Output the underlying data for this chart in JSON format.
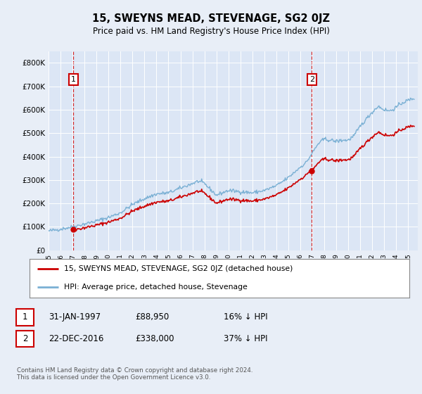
{
  "title": "15, SWEYNS MEAD, STEVENAGE, SG2 0JZ",
  "subtitle": "Price paid vs. HM Land Registry's House Price Index (HPI)",
  "background_color": "#e8eef7",
  "plot_bg_color": "#dce6f5",
  "grid_color": "#ffffff",
  "hpi_line_color": "#7ab0d4",
  "price_line_color": "#cc0000",
  "sale1_year_float": 1997.08,
  "sale1_price": 88950,
  "sale2_year_float": 2016.97,
  "sale2_price": 338000,
  "legend_text1": "15, SWEYNS MEAD, STEVENAGE, SG2 0JZ (detached house)",
  "legend_text2": "HPI: Average price, detached house, Stevenage",
  "footer1": "Contains HM Land Registry data © Crown copyright and database right 2024.",
  "footer2": "This data is licensed under the Open Government Licence v3.0.",
  "table_row1": [
    "1",
    "31-JAN-1997",
    "£88,950",
    "16% ↓ HPI"
  ],
  "table_row2": [
    "2",
    "22-DEC-2016",
    "£338,000",
    "37% ↓ HPI"
  ],
  "yticks": [
    0,
    100000,
    200000,
    300000,
    400000,
    500000,
    600000,
    700000,
    800000
  ],
  "ytick_labels": [
    "£0",
    "£100K",
    "£200K",
    "£300K",
    "£400K",
    "£500K",
    "£600K",
    "£700K",
    "£800K"
  ],
  "ylim": [
    0,
    850000
  ],
  "xlim": [
    1995.0,
    2025.8
  ],
  "hpi_base": {
    "1995.0": 82000,
    "1996.0": 90000,
    "1997.0": 100000,
    "1998.0": 112000,
    "1999.0": 125000,
    "2000.0": 140000,
    "2001.0": 160000,
    "2002.0": 195000,
    "2003.0": 220000,
    "2004.0": 240000,
    "2005.0": 245000,
    "2006.0": 265000,
    "2007.0": 285000,
    "2007.5": 295000,
    "2008.0": 285000,
    "2008.5": 260000,
    "2009.0": 235000,
    "2009.5": 245000,
    "2010.0": 255000,
    "2011.0": 250000,
    "2012.0": 245000,
    "2013.0": 255000,
    "2014.0": 275000,
    "2015.0": 310000,
    "2016.0": 355000,
    "2016.5": 375000,
    "2017.0": 415000,
    "2017.5": 455000,
    "2018.0": 475000,
    "2018.5": 470000,
    "2019.0": 465000,
    "2019.5": 470000,
    "2020.0": 470000,
    "2020.5": 490000,
    "2021.0": 530000,
    "2021.5": 560000,
    "2022.0": 590000,
    "2022.5": 615000,
    "2023.0": 600000,
    "2023.5": 595000,
    "2024.0": 610000,
    "2024.5": 630000,
    "2025.0": 640000,
    "2025.5": 650000
  }
}
